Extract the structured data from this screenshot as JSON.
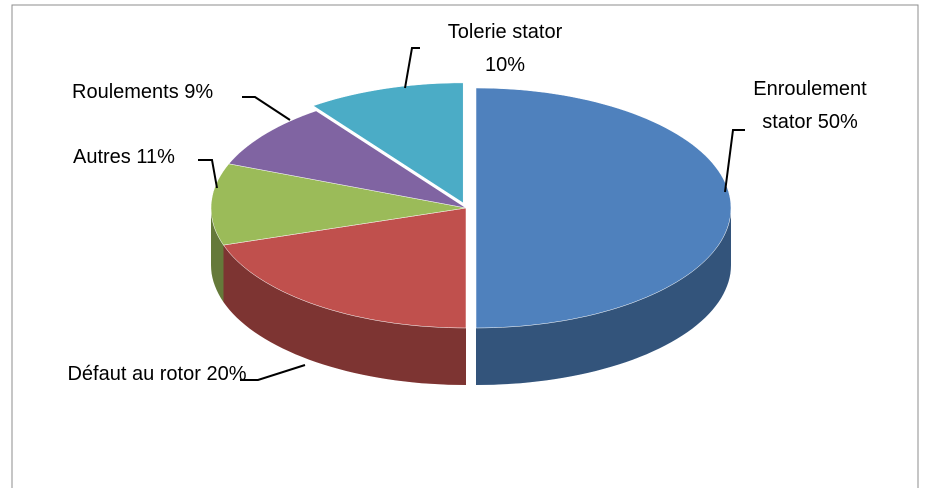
{
  "chart_data": {
    "type": "pie3d",
    "categories": [
      "Enroulement stator",
      "Défaut au rotor",
      "Autres",
      "Roulements",
      "Tolerie stator"
    ],
    "values": [
      50,
      20,
      11,
      9,
      10
    ],
    "value_labels": [
      "50%",
      "20%",
      "11%",
      "9%",
      "10%"
    ],
    "colors": [
      "#4f81bd",
      "#c0504d",
      "#9bbb59",
      "#8064a2",
      "#4bacc6"
    ]
  }
}
